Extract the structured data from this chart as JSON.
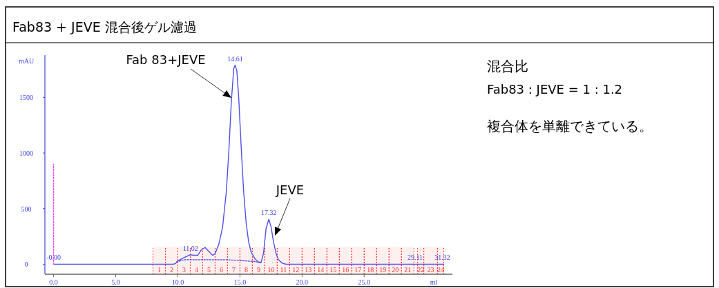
{
  "chart_data": {
    "type": "line",
    "title": "Fab83 + JEVE 混合後ゲル濾過",
    "xlabel": "ml",
    "ylabel": "mAU",
    "xlim": [
      -0.7,
      32.1
    ],
    "ylim": [
      -90,
      1880
    ],
    "xticks": [
      {
        "value": 0,
        "label": "0.0"
      },
      {
        "value": 5,
        "label": "5.0"
      },
      {
        "value": 10,
        "label": "10.0"
      },
      {
        "value": 15,
        "label": "15.0"
      },
      {
        "value": 20,
        "label": "20.0"
      },
      {
        "value": 25,
        "label": "25.0"
      }
    ],
    "yticks": [
      0,
      500,
      1000,
      1500
    ],
    "series": [
      {
        "color": "#5050e8",
        "x": [
          0,
          9.6,
          9.8,
          10.0,
          10.5,
          11.0,
          11.3,
          11.6,
          11.9,
          12.2,
          12.5,
          12.8,
          13.0,
          13.3,
          13.6,
          13.9,
          14.1,
          14.3,
          14.5,
          14.61,
          14.75,
          14.9,
          15.1,
          15.3,
          15.5,
          15.7,
          15.9,
          16.2,
          16.5,
          16.7,
          16.9,
          17.1,
          17.32,
          17.5,
          17.7,
          17.9,
          18.1,
          18.4,
          18.7,
          31.4
        ],
        "values": [
          0,
          0,
          5,
          30,
          60,
          85,
          80,
          80,
          130,
          150,
          115,
          80,
          95,
          180,
          330,
          650,
          1000,
          1450,
          1760,
          1790,
          1740,
          1500,
          1050,
          650,
          370,
          200,
          110,
          50,
          20,
          15,
          100,
          320,
          405,
          340,
          200,
          100,
          40,
          10,
          0,
          0
        ]
      },
      {
        "color": "#5050e8",
        "line_style": "dotted",
        "x": [
          9.9,
          10.5,
          14.0,
          16.2,
          16.6
        ],
        "values": [
          20,
          40,
          40,
          25,
          12
        ]
      },
      {
        "color": "#ff44ff",
        "line_style": "dotted",
        "x": [
          0,
          0
        ],
        "values": [
          0,
          900
        ]
      }
    ],
    "bands": [
      {
        "axis": "x",
        "from": 8,
        "to": 9,
        "label": "1",
        "color": "#ff3030"
      },
      {
        "axis": "x",
        "from": 9,
        "to": 10,
        "label": "2",
        "color": "#ff3030"
      },
      {
        "axis": "x",
        "from": 10,
        "to": 11,
        "label": "3",
        "color": "#ff3030"
      },
      {
        "axis": "x",
        "from": 11,
        "to": 12,
        "label": "4",
        "color": "#ff3030"
      },
      {
        "axis": "x",
        "from": 12,
        "to": 13,
        "label": "5",
        "color": "#ff3030"
      },
      {
        "axis": "x",
        "from": 13,
        "to": 14,
        "label": "6",
        "color": "#ff3030"
      },
      {
        "axis": "x",
        "from": 14,
        "to": 15,
        "label": "7",
        "color": "#ff3030"
      },
      {
        "axis": "x",
        "from": 15,
        "to": 16,
        "label": "8",
        "color": "#ff3030"
      },
      {
        "axis": "x",
        "from": 16,
        "to": 17,
        "label": "9",
        "color": "#ff3030"
      },
      {
        "axis": "x",
        "from": 17,
        "to": 18,
        "label": "10",
        "color": "#ff3030"
      },
      {
        "axis": "x",
        "from": 18,
        "to": 19,
        "label": "11",
        "color": "#ff3030"
      },
      {
        "axis": "x",
        "from": 19,
        "to": 20,
        "label": "12",
        "color": "#ff3030"
      },
      {
        "axis": "x",
        "from": 20,
        "to": 21,
        "label": "13",
        "color": "#ff3030"
      },
      {
        "axis": "x",
        "from": 21,
        "to": 22,
        "label": "14",
        "color": "#ff3030"
      },
      {
        "axis": "x",
        "from": 22,
        "to": 23,
        "label": "15",
        "color": "#ff3030"
      },
      {
        "axis": "x",
        "from": 23,
        "to": 24,
        "label": "16",
        "color": "#ff3030"
      },
      {
        "axis": "x",
        "from": 24,
        "to": 25,
        "label": "17",
        "color": "#ff3030"
      },
      {
        "axis": "x",
        "from": 25,
        "to": 26,
        "label": "18",
        "color": "#ff3030"
      },
      {
        "axis": "x",
        "from": 26,
        "to": 27,
        "label": "19",
        "color": "#ff3030"
      },
      {
        "axis": "x",
        "from": 27,
        "to": 28,
        "label": "20",
        "color": "#ff3030"
      },
      {
        "axis": "x",
        "from": 28,
        "to": 29,
        "label": "21",
        "color": "#ff3030"
      },
      {
        "axis": "x",
        "from": 29.3,
        "to": 29.8,
        "label": "22",
        "color": "#ff3030"
      },
      {
        "axis": "x",
        "from": 29.8,
        "to": 30.9,
        "label": "23",
        "color": "#ff3030"
      },
      {
        "axis": "x",
        "from": 30.9,
        "to": 31.4,
        "label": "24",
        "color": "#ff3030"
      }
    ],
    "annotations": [
      "Fab 83+JEVE",
      "JEVE",
      {
        "text": "14.61",
        "x": 14.61,
        "y": 1790
      },
      {
        "text": "17.32",
        "x": 17.32,
        "y": 405
      },
      {
        "text": "11.02",
        "x": 11.02,
        "y": 85
      },
      {
        "text": "-0.00",
        "x": 0,
        "y": 0
      },
      {
        "text": "29.11",
        "x": 29.1,
        "y": 0
      },
      {
        "text": "31.32",
        "x": 31.3,
        "y": 0
      },
      "混合比",
      "Fab83 : JEVE = 1 : 1.2",
      "複合体を単離できている。"
    ]
  }
}
